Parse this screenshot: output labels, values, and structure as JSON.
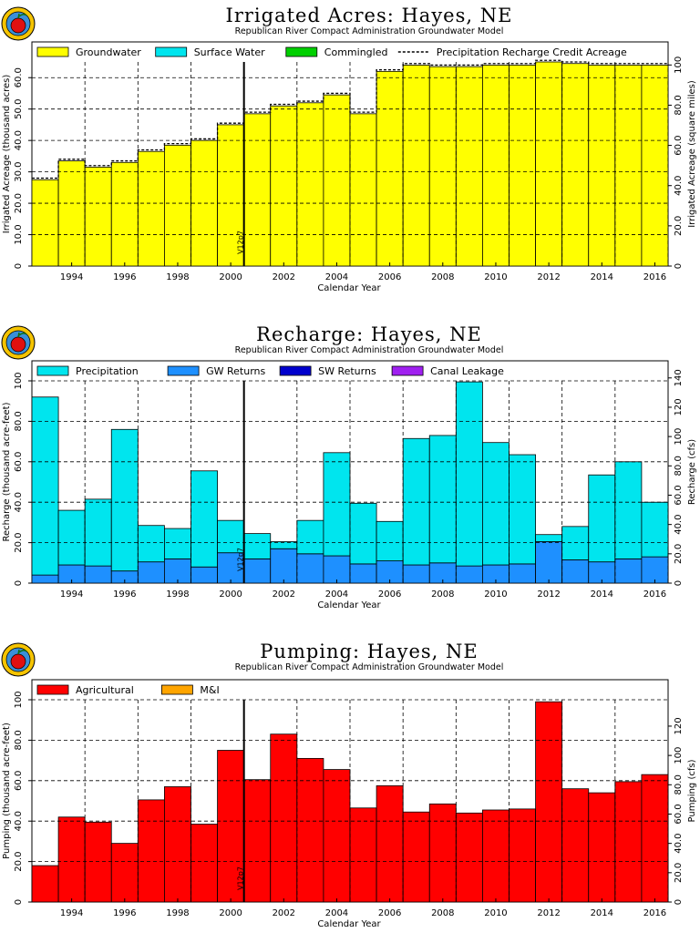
{
  "colors": {
    "groundwater": "#ffff00",
    "surface_water": "#00e5ee",
    "commingled": "#00d000",
    "precipitation": "#00e5ee",
    "gw_returns": "#1e90ff",
    "sw_returns": "#0000cd",
    "canal_leakage": "#a020f0",
    "agricultural": "#ff0000",
    "mi": "#ffa500"
  },
  "icons": {
    "logo": "apple-seal-icon"
  },
  "chart_data": [
    {
      "type": "bar",
      "title": "Irrigated Acres: Hayes, NE",
      "subtitle": "Republican River Compact Administration Groundwater Model",
      "xlabel": "Calendar Year",
      "ylabel": "Irrigated Acreage (thousand acres)",
      "ylabel_right": "Irrigated Acreage (square miles)",
      "x_ticks": [
        "1994",
        "1996",
        "1998",
        "2000",
        "2002",
        "2004",
        "2006",
        "2008",
        "2010",
        "2012",
        "2014",
        "2016"
      ],
      "y_ticks": [
        "0",
        "10.0",
        "20.0",
        "30.0",
        "40.0",
        "50.0",
        "60.0"
      ],
      "y2_ticks": [
        "0",
        "20.0",
        "40.0",
        "60.0",
        "80.0",
        "100"
      ],
      "ylim": [
        0,
        65
      ],
      "legend": [
        "Groundwater",
        "Surface Water",
        "Commingled",
        "Precipitation Recharge Credit Acreage"
      ],
      "marker_label": "V12p7",
      "marker_year": 2000.5,
      "x_start": 1992.5,
      "x_end": 2016.5,
      "series": [
        {
          "name": "Groundwater",
          "values": [
            27.5,
            33.5,
            31.5,
            33.0,
            36.5,
            38.5,
            40.0,
            45.0,
            48.5,
            51.0,
            52.0,
            54.5,
            48.5,
            62.0,
            64.0,
            63.5,
            63.5,
            64.0,
            64.0,
            65.0,
            64.5,
            64.0,
            64.0,
            64.0
          ]
        },
        {
          "name": "Surface Water",
          "values": [
            0,
            0,
            0,
            0,
            0,
            0,
            0,
            0,
            0,
            0,
            0,
            0,
            0,
            0,
            0,
            0,
            0,
            0,
            0,
            0,
            0,
            0,
            0,
            0
          ]
        },
        {
          "name": "Commingled",
          "values": [
            0,
            0,
            0,
            0,
            0,
            0,
            0,
            0,
            0,
            0,
            0,
            0,
            0,
            0,
            0,
            0,
            0,
            0,
            0,
            0,
            0,
            0,
            0,
            0
          ]
        }
      ],
      "precip_credit": [
        28.0,
        34.0,
        32.0,
        33.5,
        37.0,
        39.0,
        40.5,
        45.5,
        49.0,
        51.5,
        52.5,
        55.0,
        49.0,
        62.5,
        64.5,
        64.0,
        64.0,
        64.5,
        64.5,
        65.5,
        65.0,
        64.5,
        64.5,
        64.5
      ]
    },
    {
      "type": "bar",
      "title": "Recharge: Hayes, NE",
      "subtitle": "Republican River Compact Administration Groundwater Model",
      "xlabel": "Calendar Year",
      "ylabel": "Recharge (thousand acre-feet)",
      "ylabel_right": "Recharge (cfs)",
      "x_ticks": [
        "1994",
        "1996",
        "1998",
        "2000",
        "2002",
        "2004",
        "2006",
        "2008",
        "2010",
        "2012",
        "2014",
        "2016"
      ],
      "y_ticks": [
        "0",
        "20.0",
        "40.0",
        "60.0",
        "80.0",
        "100"
      ],
      "y2_ticks": [
        "0",
        "20.0",
        "40.0",
        "60.0",
        "80.0",
        "100",
        "120",
        "140"
      ],
      "ylim": [
        0,
        100
      ],
      "legend": [
        "Precipitation",
        "GW Returns",
        "SW Returns",
        "Canal Leakage"
      ],
      "marker_label": "V12p7",
      "marker_year": 2000.5,
      "x_start": 1992.5,
      "x_end": 2016.5,
      "series": [
        {
          "name": "GW Returns",
          "values": [
            4,
            9,
            8.5,
            6,
            10.5,
            12,
            8,
            15,
            12,
            17,
            14.5,
            13.5,
            9.5,
            11,
            9,
            10,
            8.5,
            9,
            9.5,
            20.5,
            11.5,
            10.5,
            12,
            13
          ]
        },
        {
          "name": "Precipitation",
          "values": [
            88,
            27,
            33,
            70,
            18,
            15,
            47.5,
            16,
            12.5,
            3.5,
            16.5,
            51,
            30,
            19.5,
            62.5,
            63,
            91,
            60.5,
            54,
            3.5,
            16.5,
            43,
            48,
            27
          ]
        },
        {
          "name": "SW Returns",
          "values": [
            0,
            0,
            0,
            0,
            0,
            0,
            0,
            0,
            0,
            0,
            0,
            0,
            0,
            0,
            0,
            0,
            0,
            0,
            0,
            0,
            0,
            0,
            0,
            0
          ]
        },
        {
          "name": "Canal Leakage",
          "values": [
            0,
            0,
            0,
            0,
            0,
            0,
            0,
            0,
            0,
            0,
            0,
            0,
            0,
            0,
            0,
            0,
            0,
            0,
            0,
            0,
            0,
            0,
            0,
            0
          ]
        }
      ]
    },
    {
      "type": "bar",
      "title": "Pumping: Hayes, NE",
      "subtitle": "Republican River Compact Administration Groundwater Model",
      "xlabel": "Calendar Year",
      "ylabel": "Pumping (thousand acre-feet)",
      "ylabel_right": "Pumping (cfs)",
      "x_ticks": [
        "1994",
        "1996",
        "1998",
        "2000",
        "2002",
        "2004",
        "2006",
        "2008",
        "2010",
        "2012",
        "2014",
        "2016"
      ],
      "y_ticks": [
        "0",
        "20.0",
        "40.0",
        "60.0",
        "80.0",
        "100"
      ],
      "y2_ticks": [
        "0",
        "20.0",
        "40.0",
        "60.0",
        "80.0",
        "100",
        "120"
      ],
      "ylim": [
        0,
        100
      ],
      "legend": [
        "Agricultural",
        "M&I"
      ],
      "marker_label": "V12p7",
      "marker_year": 2000.5,
      "x_start": 1992.5,
      "x_end": 2016.5,
      "series": [
        {
          "name": "Agricultural",
          "values": [
            18,
            42,
            39.5,
            29,
            50.5,
            57,
            38.5,
            75,
            60.5,
            83,
            71,
            65.5,
            46.5,
            57.5,
            44.5,
            48.5,
            44,
            45.5,
            46,
            99,
            56,
            54,
            59.5,
            63
          ]
        },
        {
          "name": "M&I",
          "values": [
            0,
            0,
            0,
            0,
            0,
            0,
            0,
            0,
            0,
            0,
            0,
            0,
            0,
            0,
            0,
            0,
            0,
            0,
            0,
            0,
            0,
            0,
            0,
            0
          ]
        }
      ]
    }
  ]
}
